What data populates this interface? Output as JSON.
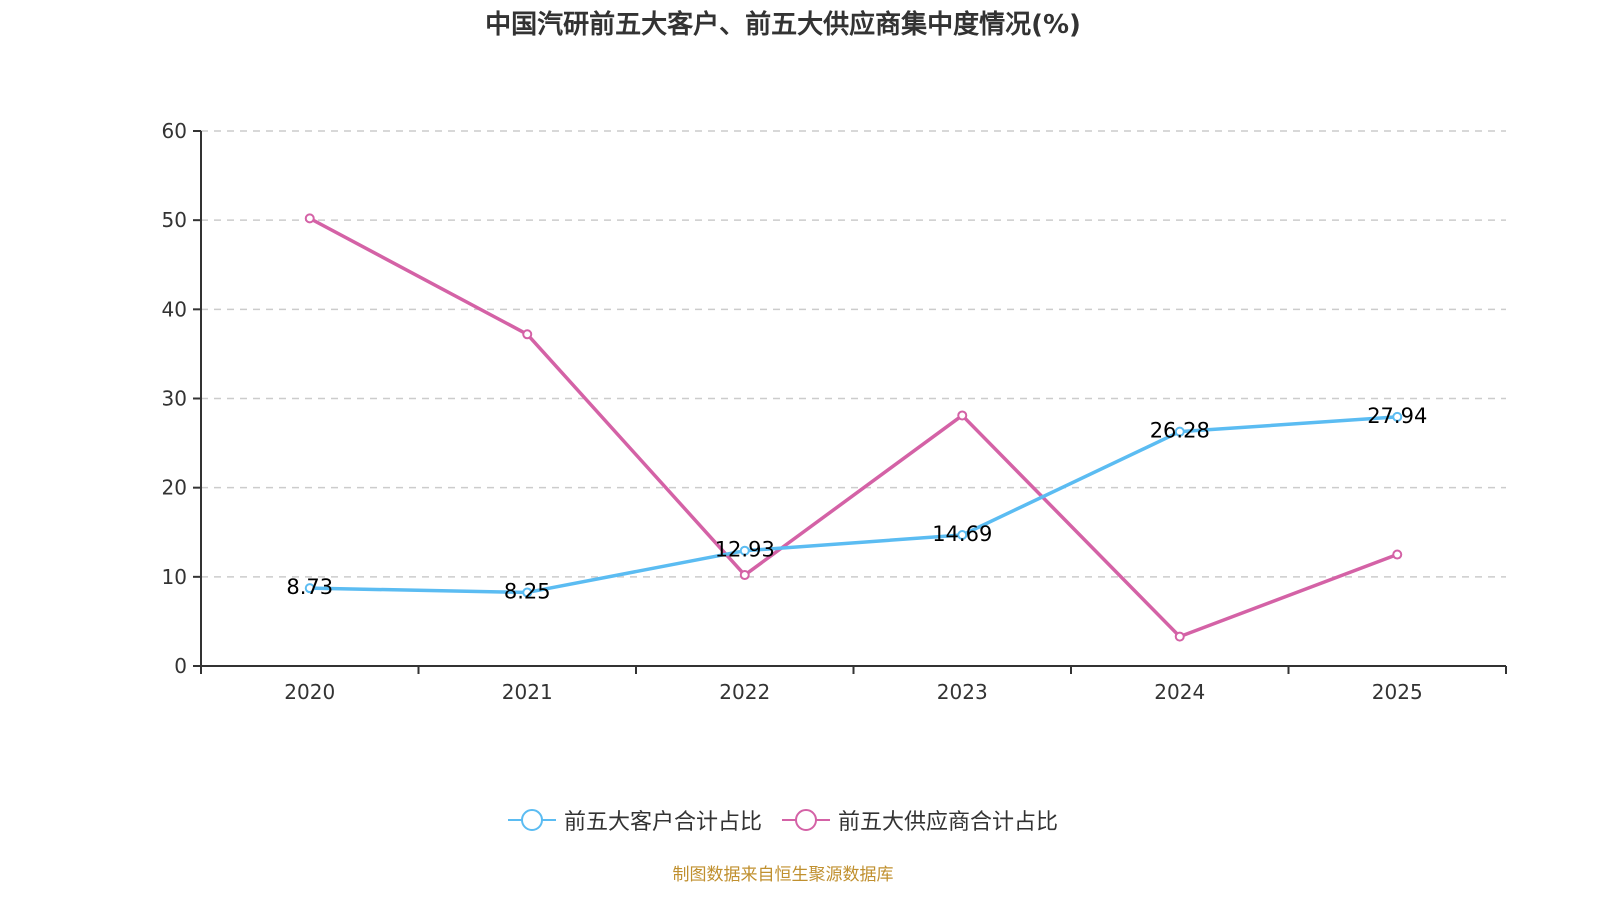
{
  "chart_data": {
    "type": "line",
    "title": "中国汽研前五大客户、前五大供应商集中度情况(%)",
    "xlabel": "",
    "ylabel": "",
    "categories": [
      "2020",
      "2021",
      "2022",
      "2023",
      "2024",
      "2025"
    ],
    "ylim": [
      0,
      60
    ],
    "yticks": [
      "0",
      "10",
      "20",
      "30",
      "40",
      "50",
      "60"
    ],
    "grid": true,
    "legend_position": "bottom",
    "series": [
      {
        "name": "前五大客户合计占比",
        "color": "#5bbcf2",
        "values": [
          8.73,
          8.25,
          12.93,
          14.69,
          26.28,
          27.94
        ],
        "labels": [
          "8.73",
          "8.25",
          "12.93",
          "14.69",
          "26.28",
          "27.94"
        ],
        "show_labels": true
      },
      {
        "name": "前五大供应商合计占比",
        "color": "#d462a6",
        "values": [
          50.2,
          37.2,
          10.2,
          28.1,
          3.3,
          12.5
        ],
        "show_labels": false
      }
    ],
    "source_note": "制图数据来自恒生聚源数据库"
  }
}
